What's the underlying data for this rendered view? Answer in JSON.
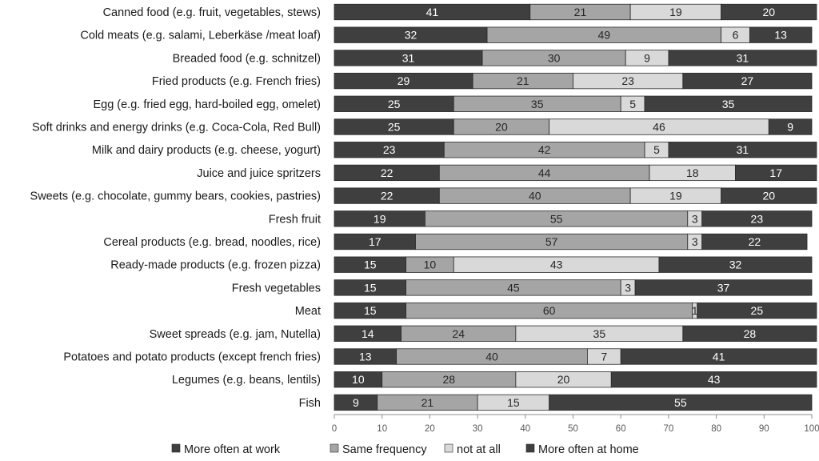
{
  "chart_data": {
    "type": "bar",
    "orientation": "horizontal",
    "stacked": true,
    "title": "",
    "xlabel": "",
    "ylabel": "",
    "xlim": [
      0,
      100
    ],
    "xticks": [
      0,
      10,
      20,
      30,
      40,
      50,
      60,
      70,
      80,
      90,
      100
    ],
    "grid": false,
    "legend_position": "bottom",
    "categories": [
      "Canned food (e.g. fruit, vegetables, stews)",
      "Cold meats (e.g. salami, Leberkäse /meat loaf)",
      "Breaded food (e.g. schnitzel)",
      "Fried products (e.g. French fries)",
      "Egg (e.g. fried egg, hard-boiled egg, omelet)",
      "Soft drinks and energy drinks (e.g. Coca-Cola, Red Bull)",
      "Milk and dairy products (e.g. cheese, yogurt)",
      "Juice and juice spritzers",
      "Sweets (e.g. chocolate, gummy bears, cookies, pastries)",
      "Fresh fruit",
      "Cereal products (e.g. bread, noodles, rice)",
      "Ready-made products (e.g. frozen pizza)",
      "Fresh vegetables",
      "Meat",
      "Sweet spreads (e.g. jam, Nutella)",
      "Potatoes and potato products (except french fries)",
      "Legumes (e.g. beans, lentils)",
      "Fish"
    ],
    "series": [
      {
        "name": "More often at work",
        "color": "#3f3f3f",
        "label_color": "#ffffff",
        "values": [
          41,
          32,
          31,
          29,
          25,
          25,
          23,
          22,
          22,
          19,
          17,
          15,
          15,
          15,
          14,
          13,
          10,
          9
        ]
      },
      {
        "name": "Same frequency",
        "color": "#a5a5a5",
        "label_color": "#262626",
        "values": [
          21,
          49,
          30,
          21,
          35,
          20,
          42,
          44,
          40,
          55,
          57,
          10,
          45,
          60,
          24,
          40,
          28,
          21
        ]
      },
      {
        "name": "not at all",
        "color": "#d9d9d9",
        "label_color": "#262626",
        "values": [
          19,
          6,
          9,
          23,
          5,
          46,
          5,
          18,
          19,
          3,
          3,
          43,
          3,
          1,
          35,
          7,
          20,
          15
        ]
      },
      {
        "name": "More often at home",
        "color": "#3f3f3f",
        "label_color": "#ffffff",
        "values": [
          20,
          13,
          31,
          27,
          35,
          9,
          31,
          17,
          20,
          23,
          22,
          32,
          37,
          25,
          28,
          41,
          43,
          55
        ]
      }
    ]
  }
}
